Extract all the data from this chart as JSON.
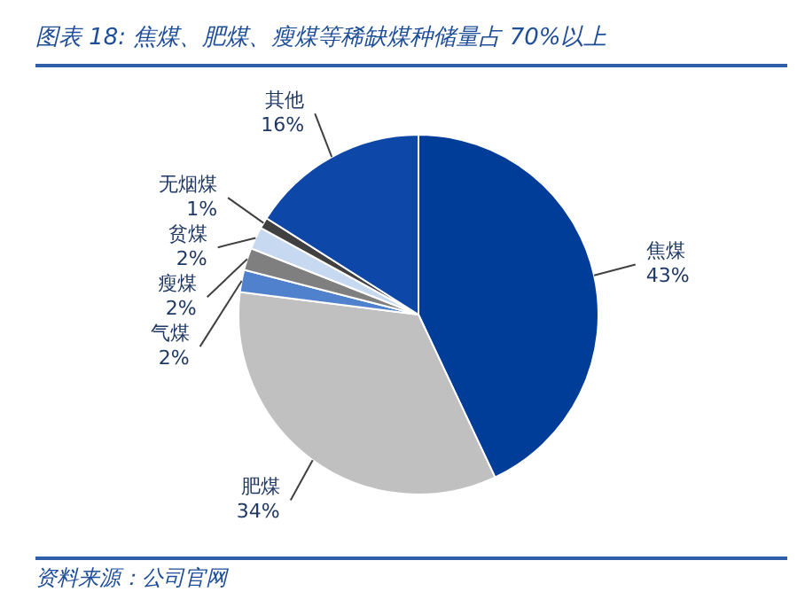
{
  "chart_data": {
    "type": "pie",
    "title": "图表 18: 焦煤、肥煤、瘦煤等稀缺煤种储量占 70%以上",
    "categories": [
      "焦煤",
      "肥煤",
      "气煤",
      "瘦煤",
      "贫煤",
      "无烟煤",
      "其他"
    ],
    "values": [
      43,
      34,
      2,
      2,
      2,
      1,
      16
    ],
    "colors": [
      "#003d99",
      "#c0c0c0",
      "#4f81cc",
      "#7f7f7f",
      "#c6d9f0",
      "#404040",
      "#0d47a8"
    ],
    "value_labels": [
      "43%",
      "34%",
      "2%",
      "2%",
      "2%",
      "1%",
      "16%"
    ],
    "annotations": [
      "资料来源：公司官网"
    ]
  }
}
